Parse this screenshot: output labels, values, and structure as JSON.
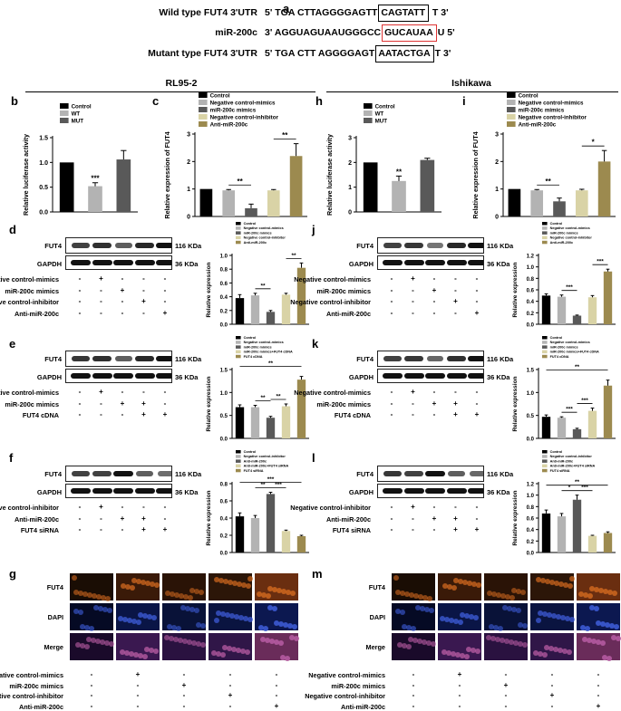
{
  "panel_a": {
    "label": "a",
    "rows": [
      {
        "name": "Wild type FUT4 3'UTR",
        "pre": "5' TGA CTTAGGGGAGTT",
        "box": "CAGTATT",
        "post": " T 3'"
      },
      {
        "name": "miR-200c",
        "pre": "3' AGGUAGUAAUGGGCC",
        "box": "GUCAUAA",
        "post": "U 5'"
      },
      {
        "name": "Mutant type FUT4 3'UTR",
        "pre": "5' TGA CTT AGGGGAGT",
        "box": "AATACTGA",
        "post": "T 3'"
      }
    ]
  },
  "groups": {
    "left": "RL95-2",
    "right": "Ishikawa"
  },
  "blot_labels": {
    "fut4": "FUT4",
    "gapdh": "GAPDH",
    "kda116": "116 KDa",
    "kda36": "36 KDa"
  },
  "treatments": {
    "ncm": "Negative control-mimics",
    "mim": "miR-200c mimics",
    "nci": "Negative control-inhibitor",
    "anti": "Anti-miR-200c",
    "cdna": "FUT4 cDNA",
    "sirna": "FUT4 siRNA"
  },
  "panel_letters": {
    "b": "b",
    "c": "c",
    "d": "d",
    "e": "e",
    "f": "f",
    "g": "g",
    "h": "h",
    "i": "i",
    "j": "j",
    "k": "k",
    "l": "l",
    "m": "m"
  },
  "treatment_rows": {
    "d": [
      [
        "ncm",
        "-",
        "+",
        "-",
        "-",
        "-"
      ],
      [
        "mim",
        "-",
        "-",
        "+",
        "-",
        "-"
      ],
      [
        "nci",
        "-",
        "-",
        "-",
        "+",
        "-"
      ],
      [
        "anti",
        "-",
        "-",
        "-",
        "-",
        "+"
      ]
    ],
    "e": [
      [
        "ncm",
        "-",
        "+",
        "-",
        "-",
        "-"
      ],
      [
        "mim",
        "-",
        "-",
        "+",
        "+",
        "-"
      ],
      [
        "cdna",
        "-",
        "-",
        "-",
        "+",
        "+"
      ]
    ],
    "f": [
      [
        "nci",
        "-",
        "+",
        "-",
        "-",
        "-"
      ],
      [
        "anti",
        "-",
        "-",
        "+",
        "+",
        "-"
      ],
      [
        "sirna",
        "-",
        "-",
        "-",
        "+",
        "+"
      ]
    ],
    "g": [
      [
        "ncm",
        "-",
        "+",
        "-",
        "-",
        "-"
      ],
      [
        "mim",
        "-",
        "-",
        "+",
        "-",
        "-"
      ],
      [
        "nci",
        "-",
        "-",
        "-",
        "+",
        "-"
      ],
      [
        "anti",
        "-",
        "-",
        "-",
        "-",
        "+"
      ]
    ]
  },
  "if_labels": {
    "fut4": "FUT4",
    "dapi": "DAPI",
    "merge": "Merge"
  },
  "colors": {
    "black": "#000000",
    "light_gray": "#b3b3b3",
    "dark_gray": "#595959",
    "khaki": "#d9d3a6",
    "olive": "#9c8a4f"
  },
  "chart_data": [
    {
      "panel": "b",
      "type": "bar",
      "ylabel": "Relative luciferase activity",
      "ylim": [
        0,
        1.5
      ],
      "yticks": [
        0.0,
        0.5,
        1.0,
        1.5
      ],
      "categories": [
        "Control",
        "WT",
        "MUT"
      ],
      "values": [
        1.0,
        0.52,
        1.06
      ],
      "errors": [
        0,
        0.07,
        0.18
      ],
      "legend": [
        "Control",
        "WT",
        "MUT"
      ],
      "sig": [
        {
          "text": "***",
          "over": 1
        }
      ]
    },
    {
      "panel": "c",
      "type": "bar",
      "ylabel": "Relative expression of FUT4",
      "ylim": [
        0,
        3
      ],
      "yticks": [
        0,
        1,
        2,
        3
      ],
      "categories": [
        "Control",
        "Negative control-mimics",
        "miR-200c mimics",
        "Negative control-inhibitor",
        "Anti-miR-200c"
      ],
      "values": [
        1.0,
        0.95,
        0.3,
        0.95,
        2.2
      ],
      "errors": [
        0,
        0.03,
        0.15,
        0.03,
        0.45
      ],
      "legend": [
        "Control",
        "Negative control-mimics",
        "miR-200c mimics",
        "Negative control-inhibitor",
        "Anti-miR-200c"
      ],
      "sig": [
        {
          "text": "**",
          "from": 1,
          "to": 2
        },
        {
          "text": "**",
          "from": 3,
          "to": 4
        }
      ]
    },
    {
      "panel": "d",
      "type": "bar",
      "ylabel": "Relative expression",
      "ylim": [
        0,
        1.0
      ],
      "yticks": [
        0.0,
        0.2,
        0.4,
        0.6,
        0.8,
        1.0
      ],
      "categories": [
        "Control",
        "Negative control-mimics",
        "miR-200c mimics",
        "Negative control-inhibitor",
        "Anti-miR-200c"
      ],
      "values": [
        0.38,
        0.42,
        0.18,
        0.43,
        0.82
      ],
      "errors": [
        0.05,
        0.03,
        0.02,
        0.02,
        0.07
      ],
      "legend": [
        "Control",
        "Negative control-mimics",
        "miR-200c mimics",
        "Negative control-inhibitor",
        "Anti-miR-200c"
      ],
      "sig": [
        {
          "text": "**",
          "from": 1,
          "to": 2
        },
        {
          "text": "**",
          "from": 3,
          "to": 4
        }
      ]
    },
    {
      "panel": "e",
      "type": "bar",
      "ylabel": "Relative expression",
      "ylim": [
        0,
        1.5
      ],
      "yticks": [
        0,
        0.5,
        1.0,
        1.5
      ],
      "categories": [
        "Control",
        "Negative control-mimics",
        "miR-200c mimics",
        "miR-200c mimics+FUT4 cDNA",
        "FUT4 cDNA"
      ],
      "values": [
        0.68,
        0.68,
        0.45,
        0.7,
        1.28
      ],
      "errors": [
        0.05,
        0.04,
        0.03,
        0.05,
        0.07
      ],
      "legend": [
        "Control",
        "Negative control-mimics",
        "miR-200c mimics",
        "miR-200c mimics+FUT4 cDNA",
        "FUT4 cDNA"
      ],
      "sig": [
        {
          "text": "**",
          "from": 1,
          "to": 2
        },
        {
          "text": "**",
          "from": 2,
          "to": 3
        },
        {
          "text": "**",
          "from": 0,
          "to": 4
        }
      ]
    },
    {
      "panel": "f",
      "type": "bar",
      "ylabel": "Relative expression",
      "ylim": [
        0,
        0.8
      ],
      "yticks": [
        0.0,
        0.2,
        0.4,
        0.6,
        0.8
      ],
      "categories": [
        "Control",
        "Negative control-inhibitor",
        "Anti-miR-200c",
        "Anti-miR-200c+FUT4 siRNA",
        "FUT4 siRNA"
      ],
      "values": [
        0.42,
        0.4,
        0.68,
        0.25,
        0.19
      ],
      "errors": [
        0.04,
        0.03,
        0.02,
        0.01,
        0.01
      ],
      "legend": [
        "Control",
        "Negative control-inhibitor",
        "Anti-miR-200c",
        "Anti-miR-200c+FUT4 siRNA",
        "FUT4 siRNA"
      ],
      "sig": [
        {
          "text": "**",
          "from": 1,
          "to": 2
        },
        {
          "text": "***",
          "from": 2,
          "to": 3
        },
        {
          "text": "***",
          "from": 0,
          "to": 4
        }
      ]
    },
    {
      "panel": "h",
      "type": "bar",
      "ylabel": "Relative luciferase activity",
      "ylim": [
        0,
        3
      ],
      "yticks": [
        0,
        1,
        2,
        3
      ],
      "categories": [
        "Control",
        "WT",
        "MUT"
      ],
      "values": [
        2.0,
        1.25,
        2.1
      ],
      "errors": [
        0,
        0.2,
        0.07
      ],
      "legend": [
        "Control",
        "WT",
        "MUT"
      ],
      "sig": [
        {
          "text": "**",
          "over": 1
        }
      ]
    },
    {
      "panel": "i",
      "type": "bar",
      "ylabel": "Relative expression of FUT4",
      "ylim": [
        0,
        3
      ],
      "yticks": [
        0,
        1,
        2,
        3
      ],
      "categories": [
        "Control",
        "Negative control-mimics",
        "miR-200c mimics",
        "Negative control-inhibitor",
        "Anti-miR-200c"
      ],
      "values": [
        1.0,
        0.95,
        0.55,
        0.95,
        2.0
      ],
      "errors": [
        0,
        0.03,
        0.12,
        0.04,
        0.4
      ],
      "legend": [
        "Control",
        "Negative control-mimics",
        "miR-200c mimics",
        "Negative control-inhibitor",
        "Anti-miR-200c"
      ],
      "sig": [
        {
          "text": "**",
          "from": 1,
          "to": 2
        },
        {
          "text": "*",
          "from": 3,
          "to": 4
        }
      ]
    },
    {
      "panel": "j",
      "type": "bar",
      "ylabel": "Relative expression",
      "ylim": [
        0,
        1.2
      ],
      "yticks": [
        0.0,
        0.2,
        0.4,
        0.6,
        0.8,
        1.0,
        1.2
      ],
      "categories": [
        "Control",
        "Negative control-mimics",
        "miR-200c mimics",
        "Negative control-inhibitor",
        "Anti-miR-200c"
      ],
      "values": [
        0.5,
        0.48,
        0.15,
        0.47,
        0.92
      ],
      "errors": [
        0.03,
        0.03,
        0.01,
        0.03,
        0.04
      ],
      "legend": [
        "Control",
        "Negative control-mimics",
        "miR-200c mimics",
        "Negative control-inhibitor",
        "Anti-miR-200c"
      ],
      "sig": [
        {
          "text": "***",
          "from": 1,
          "to": 2
        },
        {
          "text": "***",
          "from": 3,
          "to": 4
        }
      ]
    },
    {
      "panel": "k",
      "type": "bar",
      "ylabel": "Relative expression",
      "ylim": [
        0,
        1.5
      ],
      "yticks": [
        0,
        0.5,
        1.0,
        1.5
      ],
      "categories": [
        "Control",
        "Negative control-mimics",
        "miR-200c mimics",
        "miR-200c mimics+FUT4 cDNA",
        "FUT4 cDNA"
      ],
      "values": [
        0.47,
        0.45,
        0.2,
        0.6,
        1.15
      ],
      "errors": [
        0.04,
        0.02,
        0.02,
        0.06,
        0.12
      ],
      "legend": [
        "Control",
        "Negative control-mimics",
        "miR-200c mimics",
        "miR-200c mimics+FUT4 cDNA",
        "FUT4 cDNA"
      ],
      "sig": [
        {
          "text": "***",
          "from": 1,
          "to": 2
        },
        {
          "text": "***",
          "from": 2,
          "to": 3
        },
        {
          "text": "**",
          "from": 0,
          "to": 4
        }
      ]
    },
    {
      "panel": "l",
      "type": "bar",
      "ylabel": "Relative expression",
      "ylim": [
        0,
        1.2
      ],
      "yticks": [
        0.0,
        0.2,
        0.4,
        0.6,
        0.8,
        1.0,
        1.2
      ],
      "categories": [
        "Control",
        "Negative control-inhibitor",
        "Anti-miR-200c",
        "Anti-miR-200c+FUT4 siRNA",
        "FUT4 siRNA"
      ],
      "values": [
        0.68,
        0.63,
        0.92,
        0.29,
        0.34
      ],
      "errors": [
        0.06,
        0.05,
        0.08,
        0.01,
        0.02
      ],
      "legend": [
        "Control",
        "Negative control-inhibitor",
        "Anti-miR-200c",
        "Anti-miR-200c+FUT4 siRNA",
        "FUT4 siRNA"
      ],
      "sig": [
        {
          "text": "*",
          "from": 1,
          "to": 2
        },
        {
          "text": "***",
          "from": 2,
          "to": 3
        },
        {
          "text": "**",
          "from": 0,
          "to": 4
        }
      ]
    }
  ]
}
